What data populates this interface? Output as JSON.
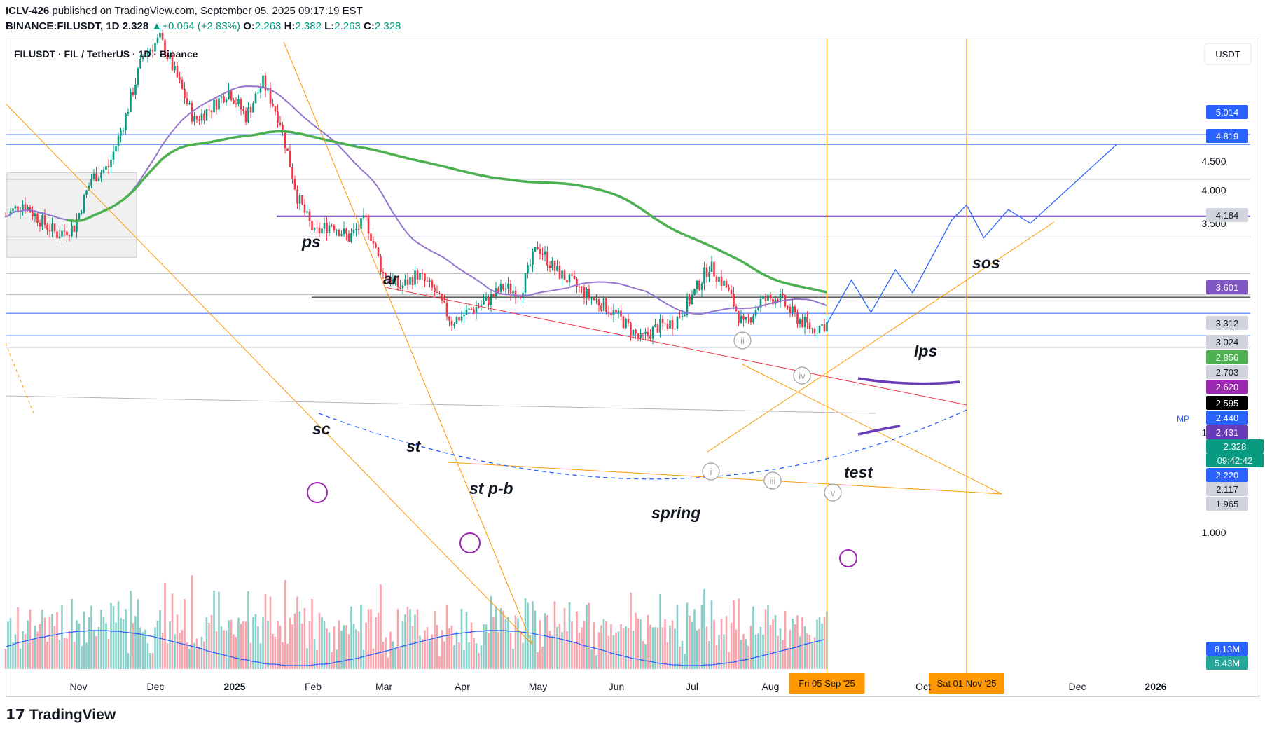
{
  "header": {
    "publisher": "ICLV-426",
    "published_text": "published on TradingView.com, September 05, 2025 09:17:19 EST",
    "symbol_line": "BINANCE:FILUSDT, 1D",
    "last": "2.328",
    "arrow": "▲",
    "change": "+0.064 (+2.83%)",
    "o_label": "O:",
    "o_value": "2.263",
    "h_label": "H:",
    "h_value": "2.382",
    "l_label": "L:",
    "l_value": "2.263",
    "c_label": "C:",
    "c_value": "2.328"
  },
  "legend": {
    "title": "FILUSDT · FIL / TetherUS · 1D · Binance"
  },
  "currency_button": "USDT",
  "footer": {
    "brand": "TradingView",
    "logo_icon": "tradingview-logo-icon"
  },
  "chart_data": {
    "type": "candlestick",
    "title": "FILUSDT · FIL / TetherUS · 1D · Binance",
    "y_scale": "log",
    "ylim": [
      0.82,
      7.4
    ],
    "y_ticks": [
      "1.000",
      "1.500",
      "3.500",
      "4.000",
      "4.500"
    ],
    "x_ticks": [
      "Nov",
      "Dec",
      "2025",
      "Feb",
      "Mar",
      "Apr",
      "May",
      "Jun",
      "Jul",
      "Aug",
      "Oct",
      "Dec",
      "2026"
    ],
    "x_range": [
      "2024-10-05",
      "2026-01-20"
    ],
    "price_labels": [
      {
        "value": "5.014",
        "color": "#2962ff"
      },
      {
        "value": "4.819",
        "color": "#2962ff"
      },
      {
        "value": "4.184",
        "color": "#9598a1"
      },
      {
        "value": "3.601",
        "color": "#7e57c2"
      },
      {
        "value": "3.312",
        "color": "#b2b5be"
      },
      {
        "value": "3.024",
        "color": "#b2b5be"
      },
      {
        "value": "2.856",
        "color": "#4caf50"
      },
      {
        "value": "2.703",
        "color": "#b2b5be"
      },
      {
        "value": "2.620",
        "color": "#9c27b0"
      },
      {
        "value": "2.595",
        "color": "#000000"
      },
      {
        "value": "2.440",
        "color": "#2962ff"
      },
      {
        "value": "2.431",
        "color": "#673ab7"
      },
      {
        "value": "2.328",
        "color": "#089981"
      },
      {
        "value": "09:42:42",
        "color": "#089981"
      },
      {
        "value": "2.220",
        "color": "#2962ff"
      },
      {
        "value": "2.117",
        "color": "#b2b5be"
      },
      {
        "value": "1.965",
        "color": "#b2b5be"
      },
      {
        "value": "8.13M",
        "color": "#2962ff"
      },
      {
        "value": "5.43M",
        "color": "#26a69a"
      }
    ],
    "horizontal_levels": [
      {
        "value": 5.014,
        "color": "#2962ff"
      },
      {
        "value": 4.819,
        "color": "#2962ff"
      },
      {
        "value": 4.184,
        "color": "#b2b5be"
      },
      {
        "value": 3.601,
        "color": "#673ab7"
      },
      {
        "value": 3.312,
        "color": "#b2b5be"
      },
      {
        "value": 2.856,
        "color": "#b2b5be"
      },
      {
        "value": 2.62,
        "color": "#b2b5be"
      },
      {
        "value": 2.595,
        "color": "#000000"
      },
      {
        "value": 2.431,
        "color": "#2962ff"
      },
      {
        "value": 2.22,
        "color": "#2962ff"
      },
      {
        "value": 2.117,
        "color": "#b2b5be"
      }
    ],
    "mp_label": "MP",
    "date_markers": [
      {
        "date": "2025-09-05",
        "label": "Fri 05 Sep '25"
      },
      {
        "date": "2025-11-01",
        "label": "Sat 01 Nov '25"
      }
    ],
    "wyckoff_labels": [
      "ps",
      "ar",
      "sc",
      "st",
      "st p-b",
      "spring",
      "test",
      "lps",
      "sos"
    ],
    "wave_labels": [
      "i",
      "ii",
      "iii",
      "iv",
      "v"
    ],
    "ohlc_path": [
      [
        "2024-10-05",
        3.6
      ],
      [
        "2024-10-12",
        3.8
      ],
      [
        "2024-10-19",
        3.55
      ],
      [
        "2024-10-26",
        3.35
      ],
      [
        "2024-11-02",
        3.45
      ],
      [
        "2024-11-09",
        4.2
      ],
      [
        "2024-11-16",
        4.4
      ],
      [
        "2024-11-23",
        5.4
      ],
      [
        "2024-11-30",
        6.9
      ],
      [
        "2024-12-07",
        7.4
      ],
      [
        "2024-12-14",
        6.3
      ],
      [
        "2024-12-21",
        5.3
      ],
      [
        "2024-12-28",
        5.6
      ],
      [
        "2025-01-04",
        6.0
      ],
      [
        "2025-01-11",
        5.4
      ],
      [
        "2025-01-18",
        6.2
      ],
      [
        "2025-01-25",
        5.3
      ],
      [
        "2025-02-01",
        3.9
      ],
      [
        "2025-02-08",
        3.35
      ],
      [
        "2025-02-15",
        3.5
      ],
      [
        "2025-02-22",
        3.3
      ],
      [
        "2025-03-01",
        3.55
      ],
      [
        "2025-03-08",
        2.85
      ],
      [
        "2025-03-15",
        2.7
      ],
      [
        "2025-03-22",
        2.85
      ],
      [
        "2025-03-29",
        2.65
      ],
      [
        "2025-04-05",
        2.35
      ],
      [
        "2025-04-12",
        2.45
      ],
      [
        "2025-04-19",
        2.55
      ],
      [
        "2025-04-26",
        2.7
      ],
      [
        "2025-05-03",
        2.65
      ],
      [
        "2025-05-10",
        3.2
      ],
      [
        "2025-05-17",
        2.9
      ],
      [
        "2025-05-24",
        2.75
      ],
      [
        "2025-05-31",
        2.6
      ],
      [
        "2025-06-07",
        2.5
      ],
      [
        "2025-06-14",
        2.35
      ],
      [
        "2025-06-21",
        2.18
      ],
      [
        "2025-06-28",
        2.3
      ],
      [
        "2025-07-05",
        2.35
      ],
      [
        "2025-07-12",
        2.6
      ],
      [
        "2025-07-19",
        2.95
      ],
      [
        "2025-07-26",
        2.7
      ],
      [
        "2025-08-02",
        2.3
      ],
      [
        "2025-08-09",
        2.55
      ],
      [
        "2025-08-16",
        2.6
      ],
      [
        "2025-08-23",
        2.4
      ],
      [
        "2025-08-30",
        2.28
      ],
      [
        "2025-09-05",
        2.328
      ]
    ],
    "projection": [
      [
        "2025-09-05",
        2.33
      ],
      [
        "2025-09-15",
        2.78
      ],
      [
        "2025-09-23",
        2.44
      ],
      [
        "2025-10-03",
        2.9
      ],
      [
        "2025-10-10",
        2.64
      ],
      [
        "2025-10-26",
        3.55
      ],
      [
        "2025-11-01",
        3.77
      ],
      [
        "2025-11-08",
        3.3
      ],
      [
        "2025-11-18",
        3.7
      ],
      [
        "2025-11-27",
        3.5
      ],
      [
        "2026-01-01",
        4.81
      ]
    ],
    "volume_ma_label": "8.13M",
    "volume_last_label": "5.43M"
  }
}
